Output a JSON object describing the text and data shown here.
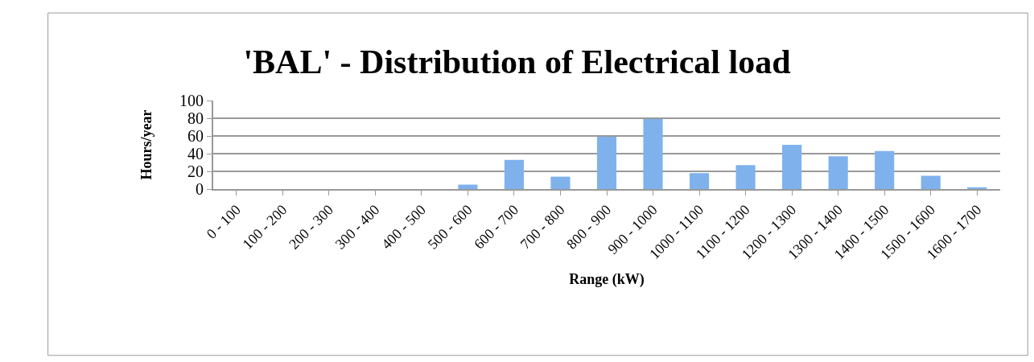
{
  "chart_data": {
    "type": "bar",
    "title": "'BAL' - Distribution of Electrical load",
    "xlabel": "Range (kW)",
    "ylabel": "Hours/year",
    "categories": [
      "0 - 100",
      "100 - 200",
      "200 - 300",
      "300 - 400",
      "400 - 500",
      "500 - 600",
      "600 - 700",
      "700 - 800",
      "800 - 900",
      "900 - 1000",
      "1000 - 1100",
      "1100 - 1200",
      "1200 - 1300",
      "1300 - 1400",
      "1400 - 1500",
      "1500 - 1600",
      "1600 - 1700"
    ],
    "values": [
      0,
      0,
      0,
      0,
      0,
      5,
      33,
      14,
      59,
      79,
      18,
      27,
      50,
      37,
      43,
      15,
      2
    ],
    "color": "#7fb2ec",
    "ylim": [
      0,
      100
    ],
    "yticks": [
      0,
      20,
      40,
      60,
      80,
      100
    ],
    "grid": "y",
    "legend": false
  }
}
